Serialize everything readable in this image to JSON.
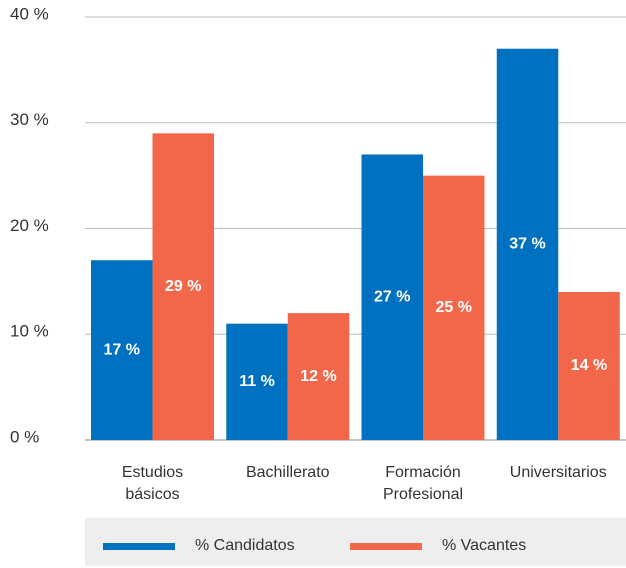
{
  "chart_data": {
    "type": "bar",
    "categories": [
      "Estudios básicos",
      "Bachillerato",
      "Formación Profesional",
      "Universitarios"
    ],
    "series": [
      {
        "name": "% Candidatos",
        "color": "#0070c0",
        "values": [
          17,
          11,
          27,
          37
        ],
        "value_labels": [
          "17 %",
          "11 %",
          "27 %",
          "37 %"
        ]
      },
      {
        "name": "% Vacantes",
        "color": "#f2674a",
        "values": [
          29,
          12,
          25,
          14
        ],
        "value_labels": [
          "29 %",
          "12 %",
          "25 %",
          "14 %"
        ]
      }
    ],
    "ylim": [
      0,
      40
    ],
    "yticks": [
      {
        "value": 0,
        "label": "0 %"
      },
      {
        "value": 10,
        "label": "10 %"
      },
      {
        "value": 20,
        "label": "20 %"
      },
      {
        "value": 30,
        "label": "30 %"
      },
      {
        "value": 40,
        "label": "40 %"
      }
    ],
    "grid": true,
    "legend": "bottom"
  }
}
